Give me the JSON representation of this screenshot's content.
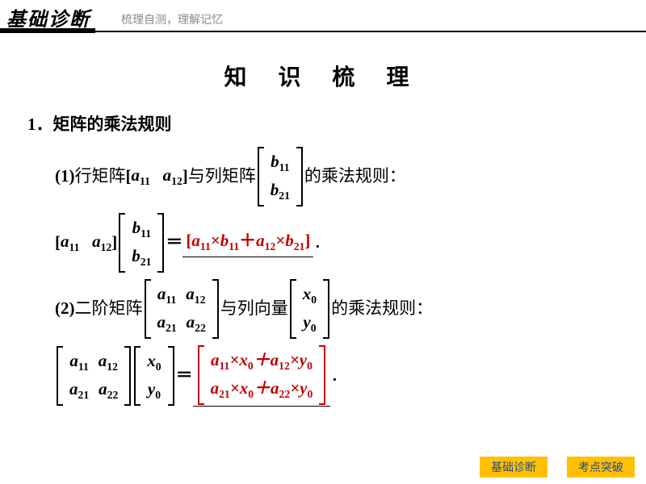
{
  "header": {
    "title": "基础诊断",
    "subtitle": "梳理自测，理解记忆",
    "title_fontsize": 24,
    "subtitle_fontsize": 14,
    "subtitle_color": "#8a8a8a",
    "line_color": "#000000"
  },
  "main_title": {
    "text": "知 识 梳 理",
    "fontsize": 28,
    "letter_spacing": 16
  },
  "section": {
    "number": "1．",
    "title": "矩阵的乘法规则"
  },
  "item1": {
    "prefix": "(1)",
    "label_a": "行矩阵",
    "row_matrix": [
      "a₁₁",
      "a₁₂"
    ],
    "mid_text": "与列矩阵",
    "col_matrix": [
      "b₁₁",
      "b₂₁"
    ],
    "suffix": "的乘法规则：",
    "eq_lhs_row": [
      "a₁₁",
      "a₁₂"
    ],
    "eq_lhs_col": [
      "b₁₁",
      "b₂₁"
    ],
    "eq_rhs": "[a₁₁×b₁₁＋a₁₂×b₂₁]",
    "period": "．"
  },
  "item2": {
    "prefix": "(2)",
    "label_a": "二阶矩阵",
    "matrix2x2": [
      [
        "a₁₁",
        "a₁₂"
      ],
      [
        "a₂₁",
        "a₂₂"
      ]
    ],
    "mid_text": "与列向量",
    "col_vec": [
      "x₀",
      "y₀"
    ],
    "suffix": "的乘法规则：",
    "eq_lhs_m": [
      [
        "a₁₁",
        "a₁₂"
      ],
      [
        "a₂₁",
        "a₂₂"
      ]
    ],
    "eq_lhs_v": [
      "x₀",
      "y₀"
    ],
    "eq_rhs": [
      [
        "a₁₁×x₀＋a₁₂×y₀"
      ],
      [
        "a₂₁×x₀＋a₂₂×y₀"
      ]
    ],
    "period": "．"
  },
  "colors": {
    "highlight": "#c00000",
    "text": "#000000",
    "background": "#ffffff"
  },
  "footer": {
    "btn1": "基础诊断",
    "btn2": "考点突破",
    "bg": "#ffc000",
    "fg": "#1a4ba0"
  }
}
